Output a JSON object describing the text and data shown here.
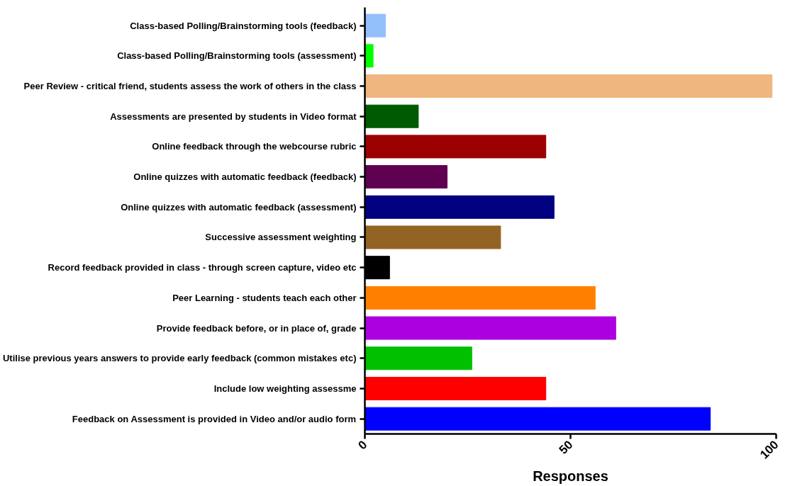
{
  "chart_data": {
    "type": "bar",
    "orientation": "horizontal",
    "xlabel": "Responses",
    "categories": [
      "Class-based Polling/Brainstorming tools (feedback)",
      "Class-based Polling/Brainstorming tools (assessment)",
      "Peer Review - critical friend, students assess the work of others in the class",
      "Assessments are presented by students in Video format",
      "Online feedback through the webcourse rubric",
      "Online quizzes with automatic feedback (feedback)",
      "Online quizzes with automatic feedback (assessment)",
      "Successive assessment weighting",
      "Record feedback provided in class - through screen capture, video etc",
      "Peer Learning - students teach each other",
      "Provide feedback before, or in place of, grade",
      "Utilise previous years answers to provide early feedback (common mistakes etc)",
      "Include low weighting assessme",
      "Feedback on Assessment is provided in Video and/or audio form"
    ],
    "values": [
      5,
      2,
      99,
      13,
      44,
      20,
      46,
      33,
      6,
      56,
      61,
      26,
      44,
      84
    ],
    "colors": [
      "#93c0fb",
      "#00ff00",
      "#f0b67f",
      "#005a00",
      "#9c0000",
      "#600050",
      "#000080",
      "#936323",
      "#000000",
      "#ff8000",
      "#ad00e0",
      "#00c000",
      "#ff0000",
      "#0000ff"
    ],
    "xlim": [
      0,
      100
    ],
    "xticks": [
      0,
      50,
      100
    ]
  }
}
